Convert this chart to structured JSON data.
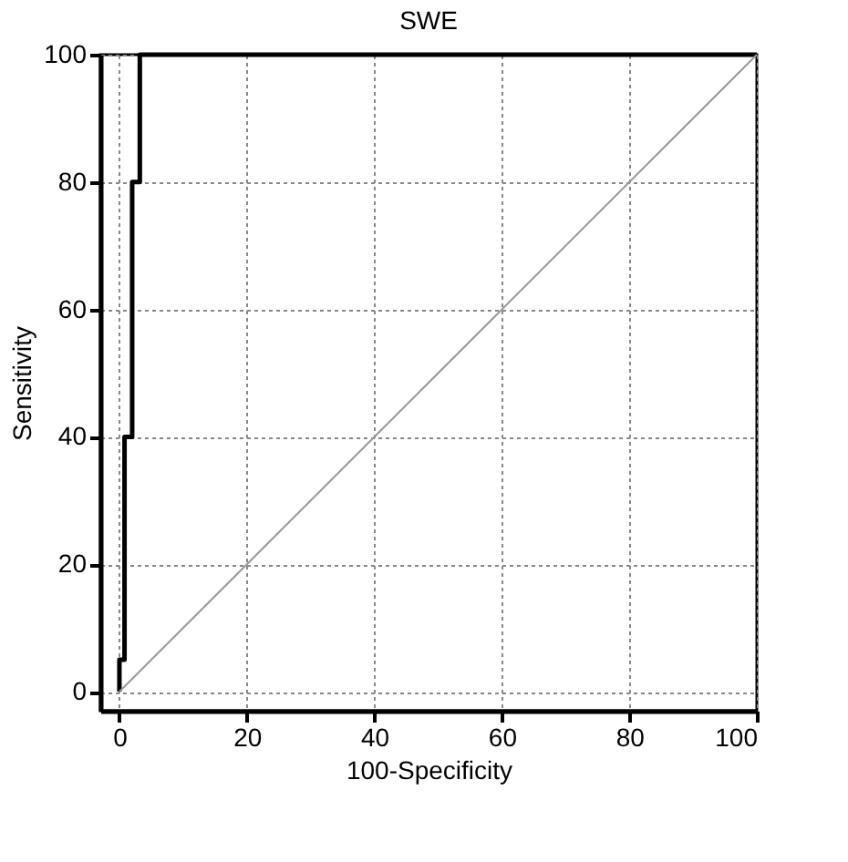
{
  "chart_data": {
    "type": "line",
    "title": "SWE",
    "xlabel": "100-Specificity",
    "ylabel": "Sensitivity",
    "series": [
      {
        "color": "#000000",
        "x": [
          0,
          0,
          0.8,
          0.8,
          2,
          2,
          3.2,
          3.2,
          100
        ],
        "values": [
          0,
          5,
          5,
          40,
          40,
          80,
          80,
          100,
          100
        ]
      },
      {
        "color": "#999999",
        "x": [
          0,
          100
        ],
        "values": [
          0,
          100
        ]
      }
    ],
    "xlim": [
      -3,
      100
    ],
    "ylim": [
      -3,
      100
    ],
    "xticks": [
      0,
      20,
      40,
      60,
      80,
      100
    ],
    "yticks": [
      0,
      20,
      40,
      60,
      80,
      100
    ],
    "grid": true,
    "marker": "none",
    "line_style": "solid"
  }
}
